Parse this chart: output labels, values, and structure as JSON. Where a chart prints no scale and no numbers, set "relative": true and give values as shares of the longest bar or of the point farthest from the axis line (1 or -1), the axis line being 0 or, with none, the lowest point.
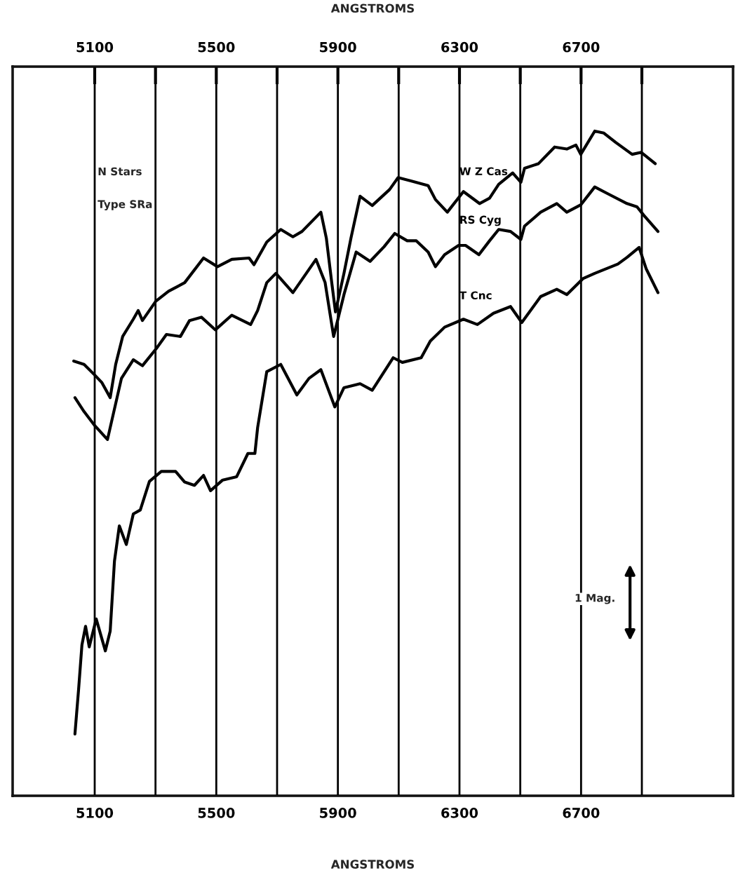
{
  "chart_data": {
    "type": "line",
    "relative": true,
    "xlabel": "ANGSTROMS",
    "x2label": "ANGSTROMS",
    "xlim": [
      4830,
      7200
    ],
    "xticks": [
      5100,
      {
        "value": 5300,
        "label": null
      },
      5500,
      {
        "value": 5700,
        "label": null
      },
      5900,
      {
        "value": 6100,
        "label": null
      },
      6300,
      {
        "value": 6500,
        "label": null
      },
      6700,
      {
        "value": 6900,
        "label": null
      }
    ],
    "x2lim": [
      4830,
      7200
    ],
    "x2ticks": [
      5100,
      {
        "value": 5300,
        "label": null
      },
      5500,
      {
        "value": 5700,
        "label": null
      },
      5900,
      {
        "value": 6100,
        "label": null
      },
      6300,
      {
        "value": 6500,
        "label": null
      },
      6700,
      {
        "value": 6900,
        "label": null
      }
    ],
    "grid": "x",
    "legend": false,
    "marker": "none",
    "line_style": "solid",
    "annotations": [
      "N Stars",
      "Type SRa",
      "1 Mag."
    ],
    "series": [
      {
        "name": "W Z Cas",
        "color": "#000000",
        "x": [
          5031,
          5065,
          5100,
          5123,
          5151,
          5169,
          5192,
          5227,
          5243,
          5257,
          5301,
          5343,
          5396,
          5458,
          5504,
          5551,
          5608,
          5624,
          5666,
          5712,
          5752,
          5782,
          5844,
          5862,
          5879,
          5892,
          5920,
          5943,
          5973,
          6013,
          6070,
          6098,
          6140,
          6197,
          6221,
          6260,
          6313,
          6366,
          6399,
          6429,
          6475,
          6502,
          6514,
          6560,
          6613,
          6653,
          6683,
          6699,
          6745,
          6775,
          6814,
          6868,
          6898,
          6944
        ],
        "values": [
          0.654,
          0.649,
          0.633,
          0.622,
          0.599,
          0.649,
          0.691,
          0.717,
          0.73,
          0.715,
          0.744,
          0.759,
          0.772,
          0.809,
          0.796,
          0.807,
          0.809,
          0.799,
          0.833,
          0.852,
          0.841,
          0.849,
          0.878,
          0.839,
          0.775,
          0.728,
          0.786,
          0.839,
          0.902,
          0.888,
          0.912,
          0.93,
          0.925,
          0.918,
          0.897,
          0.878,
          0.909,
          0.891,
          0.899,
          0.92,
          0.937,
          0.923,
          0.944,
          0.951,
          0.976,
          0.973,
          0.979,
          0.965,
          1.0,
          0.997,
          0.983,
          0.965,
          0.968,
          0.951
        ]
      },
      {
        "name": "RS Cyg",
        "color": "#000000",
        "x": [
          5035,
          5065,
          5100,
          5142,
          5188,
          5227,
          5257,
          5303,
          5336,
          5382,
          5412,
          5451,
          5497,
          5551,
          5613,
          5636,
          5666,
          5696,
          5752,
          5828,
          5858,
          5886,
          5920,
          5960,
          6006,
          6052,
          6087,
          6128,
          6158,
          6197,
          6221,
          6251,
          6297,
          6320,
          6364,
          6399,
          6429,
          6468,
          6502,
          6514,
          6567,
          6620,
          6653,
          6699,
          6745,
          6791,
          6851,
          6884,
          6907,
          6953
        ],
        "values": [
          0.599,
          0.578,
          0.557,
          0.536,
          0.628,
          0.656,
          0.647,
          0.673,
          0.694,
          0.691,
          0.715,
          0.72,
          0.701,
          0.723,
          0.709,
          0.73,
          0.772,
          0.786,
          0.757,
          0.807,
          0.772,
          0.691,
          0.754,
          0.818,
          0.804,
          0.826,
          0.846,
          0.835,
          0.835,
          0.818,
          0.796,
          0.814,
          0.828,
          0.828,
          0.814,
          0.835,
          0.852,
          0.849,
          0.837,
          0.857,
          0.878,
          0.891,
          0.878,
          0.889,
          0.916,
          0.905,
          0.891,
          0.886,
          0.873,
          0.849
        ]
      },
      {
        "name": "T Cnc",
        "color": "#000000",
        "x": [
          5035,
          5047,
          5058,
          5070,
          5082,
          5105,
          5135,
          5151,
          5165,
          5181,
          5204,
          5227,
          5250,
          5280,
          5319,
          5366,
          5396,
          5428,
          5458,
          5481,
          5521,
          5567,
          5604,
          5627,
          5636,
          5666,
          5712,
          5765,
          5805,
          5844,
          5890,
          5920,
          5973,
          6013,
          6082,
          6112,
          6174,
          6204,
          6251,
          6313,
          6359,
          6412,
          6468,
          6505,
          6567,
          6620,
          6653,
          6706,
          6745,
          6821,
          6851,
          6891,
          6914,
          6953
        ],
        "values": [
          0.093,
          0.16,
          0.227,
          0.255,
          0.224,
          0.266,
          0.218,
          0.248,
          0.353,
          0.406,
          0.378,
          0.424,
          0.43,
          0.473,
          0.488,
          0.488,
          0.472,
          0.467,
          0.482,
          0.459,
          0.475,
          0.48,
          0.515,
          0.515,
          0.554,
          0.638,
          0.649,
          0.603,
          0.628,
          0.641,
          0.585,
          0.614,
          0.62,
          0.61,
          0.659,
          0.652,
          0.659,
          0.684,
          0.705,
          0.717,
          0.709,
          0.726,
          0.736,
          0.712,
          0.751,
          0.762,
          0.754,
          0.778,
          0.786,
          0.8,
          0.81,
          0.825,
          0.793,
          0.757
        ]
      }
    ]
  }
}
